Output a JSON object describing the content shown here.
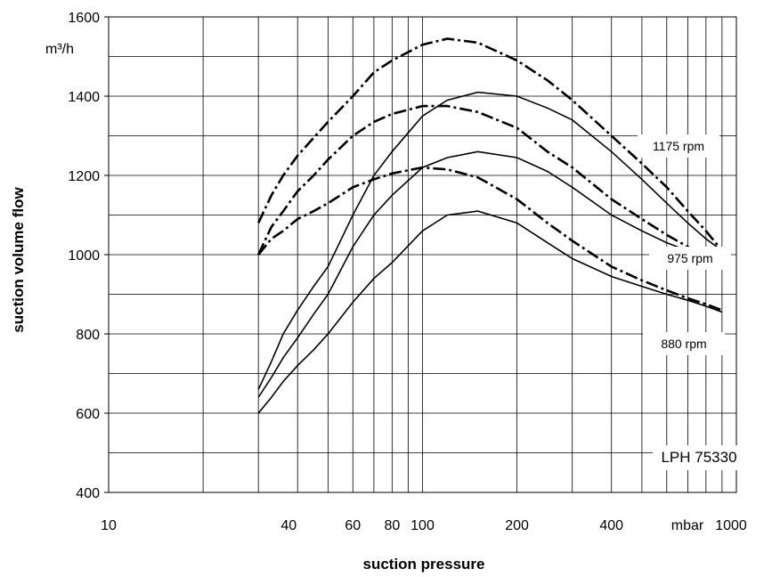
{
  "chart_data": {
    "type": "line",
    "title": "",
    "xlabel": "suction pressure",
    "ylabel": "suction volume flow",
    "y_unit": "m³/h",
    "x_unit": "mbar",
    "x_scale": "log",
    "xlim": [
      10,
      1000
    ],
    "ylim": [
      400,
      1600
    ],
    "grid": true,
    "x_tick_labels": [
      {
        "value": 10,
        "label": "10"
      },
      {
        "value": 40,
        "label": "40"
      },
      {
        "value": 60,
        "label": "60"
      },
      {
        "value": 80,
        "label": "80"
      },
      {
        "value": 100,
        "label": "100"
      },
      {
        "value": 200,
        "label": "200"
      },
      {
        "value": 400,
        "label": "400"
      },
      {
        "value": 1000,
        "label": "1000"
      }
    ],
    "y_tick_labels": [
      {
        "value": 400,
        "label": "400"
      },
      {
        "value": 600,
        "label": "600"
      },
      {
        "value": 800,
        "label": "800"
      },
      {
        "value": 1000,
        "label": "1000"
      },
      {
        "value": 1200,
        "label": "1200"
      },
      {
        "value": 1400,
        "label": "1400"
      },
      {
        "value": 1600,
        "label": "1600"
      }
    ],
    "annotations": [
      "1175 rpm",
      "975 rpm",
      "880 rpm",
      "LPH 75330"
    ],
    "series": [
      {
        "style": "solid",
        "x": [
          30,
          33,
          36,
          40,
          45,
          50,
          60,
          70,
          80,
          100,
          120,
          150,
          200,
          250,
          300,
          400,
          500,
          600,
          700,
          800,
          900
        ],
        "y": [
          660,
          730,
          800,
          860,
          920,
          970,
          1100,
          1200,
          1260,
          1350,
          1390,
          1410,
          1400,
          1370,
          1340,
          1260,
          1190,
          1130,
          1080,
          1040,
          1010
        ]
      },
      {
        "style": "solid",
        "x": [
          30,
          33,
          36,
          40,
          45,
          50,
          60,
          70,
          80,
          100,
          120,
          150,
          200,
          250,
          300,
          400,
          500,
          600,
          700,
          800,
          900
        ],
        "y": [
          640,
          690,
          740,
          790,
          850,
          900,
          1020,
          1100,
          1150,
          1220,
          1245,
          1260,
          1245,
          1210,
          1170,
          1100,
          1060,
          1030,
          1010,
          990,
          975
        ]
      },
      {
        "style": "solid",
        "x": [
          30,
          33,
          36,
          40,
          45,
          50,
          60,
          70,
          80,
          100,
          120,
          150,
          200,
          250,
          300,
          400,
          500,
          600,
          700,
          800,
          900
        ],
        "y": [
          600,
          640,
          680,
          720,
          760,
          800,
          880,
          940,
          980,
          1060,
          1100,
          1110,
          1080,
          1030,
          990,
          945,
          920,
          900,
          885,
          870,
          855
        ]
      },
      {
        "style": "dashed",
        "x": [
          30,
          33,
          36,
          40,
          45,
          50,
          60,
          70,
          80,
          100,
          120,
          150,
          200,
          250,
          300,
          400,
          500,
          600,
          700,
          800,
          900
        ],
        "y": [
          1080,
          1150,
          1200,
          1250,
          1295,
          1335,
          1400,
          1460,
          1490,
          1530,
          1545,
          1535,
          1490,
          1440,
          1390,
          1300,
          1230,
          1170,
          1110,
          1060,
          1010
        ]
      },
      {
        "style": "dashed",
        "x": [
          30,
          33,
          36,
          40,
          45,
          50,
          60,
          70,
          80,
          100,
          120,
          150,
          200,
          250,
          300,
          400,
          500,
          600,
          700,
          800,
          900
        ],
        "y": [
          1000,
          1070,
          1110,
          1160,
          1200,
          1240,
          1300,
          1335,
          1355,
          1375,
          1375,
          1360,
          1320,
          1260,
          1220,
          1140,
          1090,
          1050,
          1020,
          990,
          965
        ]
      },
      {
        "style": "dashed",
        "x": [
          30,
          33,
          36,
          40,
          45,
          50,
          60,
          70,
          80,
          100,
          120,
          150,
          200,
          250,
          300,
          400,
          500,
          600,
          700,
          800,
          900
        ],
        "y": [
          1000,
          1040,
          1060,
          1090,
          1110,
          1130,
          1170,
          1190,
          1205,
          1220,
          1215,
          1195,
          1140,
          1080,
          1035,
          970,
          935,
          910,
          890,
          875,
          860
        ]
      }
    ]
  }
}
